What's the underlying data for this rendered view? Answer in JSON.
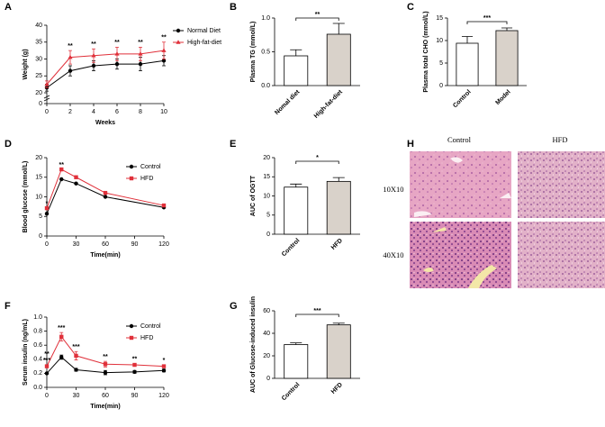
{
  "chart_data": [
    {
      "type": "line",
      "panel": "A",
      "xlabel": "Weeks",
      "ylabel": "Weight (g)",
      "x": [
        0,
        2,
        4,
        6,
        8,
        10
      ],
      "xlim": [
        0,
        10
      ],
      "xticks": [
        0,
        2,
        4,
        6,
        8,
        10
      ],
      "ylim": [
        0,
        40
      ],
      "yticks": [
        0,
        20,
        25,
        30,
        35,
        40
      ],
      "ybreak": true,
      "legend": "right",
      "series": [
        {
          "name": "Normal Diet",
          "color": "#000000",
          "marker": "circle",
          "values": [
            21.5,
            26.5,
            28,
            28.5,
            28.5,
            29.5
          ],
          "errors": [
            1,
            1.5,
            1.5,
            1.5,
            2,
            1.5
          ]
        },
        {
          "name": "High-fat-diet",
          "color": "#e0303a",
          "marker": "triangle",
          "values": [
            22.5,
            30.5,
            31,
            31.5,
            31.5,
            32.5
          ],
          "errors": [
            1,
            2,
            2,
            2,
            2,
            2.5
          ]
        }
      ],
      "annotations": [
        {
          "x": 2,
          "text": "**"
        },
        {
          "x": 4,
          "text": "**"
        },
        {
          "x": 6,
          "text": "**"
        },
        {
          "x": 8,
          "text": "**"
        },
        {
          "x": 10,
          "text": "**"
        }
      ]
    },
    {
      "type": "bar",
      "panel": "B",
      "ylabel": "Plasma TG (mmol/L)",
      "categories": [
        "Nomal diet",
        "High-fat-diet"
      ],
      "values": [
        0.44,
        0.76
      ],
      "errors": [
        0.09,
        0.16
      ],
      "colors": [
        "#ffffff",
        "#d9d2ca"
      ],
      "ylim": [
        0,
        1
      ],
      "yticks": [
        {
          "value": 0,
          "label": "0.0"
        },
        0.5,
        {
          "value": 1,
          "label": "1.0"
        }
      ],
      "significance": "**"
    },
    {
      "type": "bar",
      "panel": "C",
      "ylabel": "Plasma total CHO (mmol/L)",
      "categories": [
        "Control",
        "Model"
      ],
      "values": [
        9.4,
        12.2
      ],
      "errors": [
        1.5,
        0.6
      ],
      "colors": [
        "#ffffff",
        "#d9d2ca"
      ],
      "ylim": [
        0,
        15
      ],
      "yticks": [
        0,
        5,
        10,
        15
      ],
      "significance": "***"
    },
    {
      "type": "line",
      "panel": "D",
      "xlabel": "Time(min)",
      "ylabel": "Blood glucose (mmol/L)",
      "x": [
        0,
        15,
        30,
        60,
        120
      ],
      "xlim": [
        0,
        120
      ],
      "xticks": [
        0,
        30,
        60,
        90,
        120
      ],
      "ylim": [
        0,
        20
      ],
      "yticks": [
        0,
        5,
        10,
        15,
        20
      ],
      "legend": "upper right",
      "series": [
        {
          "name": "Control",
          "color": "#000000",
          "marker": "circle",
          "values": [
            5.7,
            14.5,
            13.4,
            10,
            7.3
          ]
        },
        {
          "name": "HFD",
          "color": "#e0303a",
          "marker": "square",
          "values": [
            7.1,
            17,
            15,
            11,
            7.8
          ]
        }
      ],
      "annotations": [
        {
          "x": 0,
          "text": "*"
        },
        {
          "x": 15,
          "text": "**"
        }
      ]
    },
    {
      "type": "bar",
      "panel": "E",
      "ylabel": "AUC of OGTT",
      "categories": [
        "Control",
        "HFD"
      ],
      "values": [
        12.3,
        13.8
      ],
      "errors": [
        0.8,
        1
      ],
      "colors": [
        "#ffffff",
        "#d9d2ca"
      ],
      "ylim": [
        0,
        20
      ],
      "yticks": [
        0,
        5,
        10,
        15,
        20
      ],
      "significance": "*"
    },
    {
      "type": "line",
      "panel": "F",
      "xlabel": "Time(min)",
      "ylabel": "Serum insulin (ng/mL)",
      "x": [
        0,
        15,
        30,
        60,
        90,
        120
      ],
      "xlim": [
        0,
        120
      ],
      "xticks": [
        0,
        30,
        60,
        90,
        120
      ],
      "ylim": [
        0,
        1
      ],
      "yticks": [
        {
          "value": 0,
          "label": "0.0"
        },
        0.2,
        0.4,
        0.6,
        0.8,
        {
          "value": 1,
          "label": "1.0"
        }
      ],
      "legend": "upper right",
      "series": [
        {
          "name": "Control",
          "color": "#000000",
          "marker": "circle",
          "values": [
            0.2,
            0.43,
            0.25,
            0.21,
            0.22,
            0.24
          ],
          "errors": [
            0.01,
            0.03,
            0.02,
            0.03,
            0.02,
            0.02
          ]
        },
        {
          "name": "HFD",
          "color": "#e0303a",
          "marker": "square",
          "values": [
            0.3,
            0.72,
            0.45,
            0.33,
            0.32,
            0.3
          ],
          "errors": [
            0.02,
            0.06,
            0.06,
            0.04,
            0.02,
            0.02
          ]
        }
      ],
      "annotations": [
        {
          "x": 0,
          "text": "***"
        },
        {
          "x": 0,
          "text": "**"
        },
        {
          "x": 15,
          "text": "***"
        },
        {
          "x": 30,
          "text": "***"
        },
        {
          "x": 60,
          "text": "**"
        },
        {
          "x": 90,
          "text": "**"
        },
        {
          "x": 120,
          "text": "*"
        }
      ]
    },
    {
      "type": "bar",
      "panel": "G",
      "ylabel": "AUC of Glucose-induced insulin",
      "categories": [
        "Control",
        "HFD"
      ],
      "values": [
        30,
        47.5
      ],
      "errors": [
        1.5,
        1.5
      ],
      "colors": [
        "#ffffff",
        "#d9d2ca"
      ],
      "ylim": [
        0,
        60
      ],
      "yticks": [
        0,
        20,
        40,
        60
      ],
      "significance": "***"
    }
  ],
  "histology": {
    "panel": "H",
    "columns": [
      "Control",
      "HFD"
    ],
    "rows": [
      "10X10",
      "40X10"
    ]
  }
}
